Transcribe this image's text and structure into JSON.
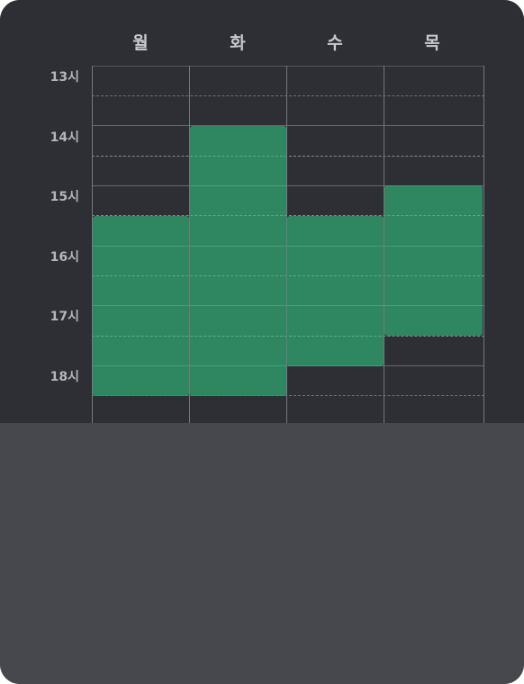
{
  "schedule": {
    "days": [
      "월",
      "화",
      "수",
      "목"
    ],
    "hours": [
      "13시",
      "14시",
      "15시",
      "16시",
      "17시",
      "18시"
    ],
    "start_hour": 13,
    "end_hour": 19,
    "block_color": "#2ea06e",
    "blocks": [
      {
        "day": "월",
        "start": 15.5,
        "end": 18.5
      },
      {
        "day": "화",
        "start": 14.0,
        "end": 18.5
      },
      {
        "day": "수",
        "start": 15.5,
        "end": 18.0
      },
      {
        "day": "목",
        "start": 15.0,
        "end": 17.5
      }
    ]
  }
}
